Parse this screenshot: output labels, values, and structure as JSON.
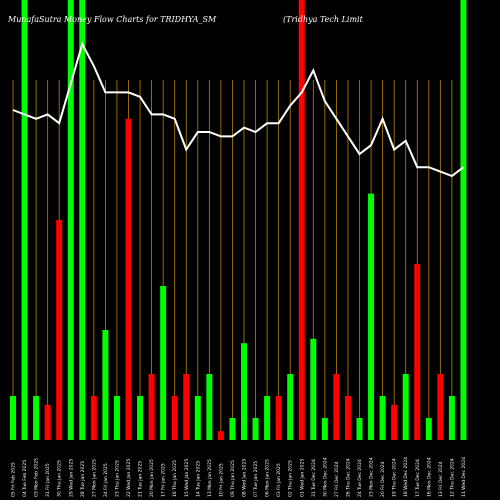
{
  "header": {
    "left_title": "MunafaSutra  Money Flow  Charts for TRIDHYA_SM",
    "right_title": "(Tridhya  Tech Limit"
  },
  "colors": {
    "background": "#000000",
    "up": "#00ff00",
    "down": "#ff0000",
    "line": "#ffffff",
    "grid": "#b8860b"
  },
  "chart_data": {
    "type": "bar",
    "title": "MunafaSutra  Money Flow  Charts for TRIDHYA_SM",
    "grid": true,
    "ylim": [
      0,
      100
    ],
    "categories": [
      "05 Fri Feb 2025",
      "04 Tue Feb 2025",
      "03 Mon Feb 2025",
      "31 Fri Jan 2025",
      "30 Thu Jan 2025",
      "29 Wed Jan 2025",
      "28 Tue Jan 2025",
      "27 Mon Jan 2025",
      "24 Fri Jan 2025",
      "23 Thu Jan 2025",
      "22 Wed Jan 2025",
      "21 Tue Jan 2025",
      "20 Mon Jan 2025",
      "17 Fri Jan 2025",
      "16 Thu Jan 2025",
      "15 Wed Jan 2025",
      "14 Tue Jan 2025",
      "13 Mon Jan 2025",
      "10 Fri Jan 2025",
      "09 Thu Jan 2025",
      "08 Wed Jan 2025",
      "07 Tue Jan 2025",
      "06 Mon Jan 2025",
      "03 Fri Jan 2025",
      "02 Thu Jan 2025",
      "01 Wed Jan 2025",
      "31 Tue Dec 2024",
      "30 Mon Dec 2024",
      "27 Fri Dec 2024",
      "26 Thu Dec 2024",
      "24 Tue Dec 2024",
      "23 Mon Dec 2024",
      "20 Fri Dec 2024",
      "19 Thu Dec 2024",
      "18 Wed Dec 2024",
      "17 Tue Dec 2024",
      "16 Mon Dec 2024",
      "13 Fri Dec 2024",
      "12 Thu Dec 2024",
      "11 Wed Dec 2024"
    ],
    "bars": [
      {
        "value": 10,
        "dir": "up"
      },
      {
        "value": 100,
        "dir": "up"
      },
      {
        "value": 10,
        "dir": "up"
      },
      {
        "value": 8,
        "dir": "down"
      },
      {
        "value": 50,
        "dir": "down"
      },
      {
        "value": 100,
        "dir": "up"
      },
      {
        "value": 100,
        "dir": "up"
      },
      {
        "value": 10,
        "dir": "down"
      },
      {
        "value": 25,
        "dir": "up"
      },
      {
        "value": 10,
        "dir": "up"
      },
      {
        "value": 73,
        "dir": "down"
      },
      {
        "value": 10,
        "dir": "up"
      },
      {
        "value": 15,
        "dir": "down"
      },
      {
        "value": 35,
        "dir": "up"
      },
      {
        "value": 10,
        "dir": "down"
      },
      {
        "value": 15,
        "dir": "down"
      },
      {
        "value": 10,
        "dir": "up"
      },
      {
        "value": 15,
        "dir": "up"
      },
      {
        "value": 2,
        "dir": "down"
      },
      {
        "value": 5,
        "dir": "up"
      },
      {
        "value": 22,
        "dir": "up"
      },
      {
        "value": 5,
        "dir": "up"
      },
      {
        "value": 10,
        "dir": "up"
      },
      {
        "value": 10,
        "dir": "down"
      },
      {
        "value": 15,
        "dir": "up"
      },
      {
        "value": 100,
        "dir": "down"
      },
      {
        "value": 23,
        "dir": "up"
      },
      {
        "value": 5,
        "dir": "up"
      },
      {
        "value": 15,
        "dir": "down"
      },
      {
        "value": 10,
        "dir": "down"
      },
      {
        "value": 5,
        "dir": "up"
      },
      {
        "value": 56,
        "dir": "up"
      },
      {
        "value": 10,
        "dir": "up"
      },
      {
        "value": 8,
        "dir": "down"
      },
      {
        "value": 15,
        "dir": "up"
      },
      {
        "value": 40,
        "dir": "down"
      },
      {
        "value": 5,
        "dir": "up"
      },
      {
        "value": 15,
        "dir": "down"
      },
      {
        "value": 10,
        "dir": "up"
      },
      {
        "value": 100,
        "dir": "up"
      }
    ],
    "line": [
      75,
      74,
      73,
      74,
      72,
      81,
      90,
      85,
      79,
      79,
      79,
      78,
      74,
      74,
      73,
      66,
      70,
      70,
      69,
      69,
      71,
      70,
      72,
      72,
      76,
      79,
      84,
      77,
      73,
      69,
      65,
      67,
      73,
      66,
      68,
      62,
      62,
      61,
      60,
      62
    ]
  }
}
